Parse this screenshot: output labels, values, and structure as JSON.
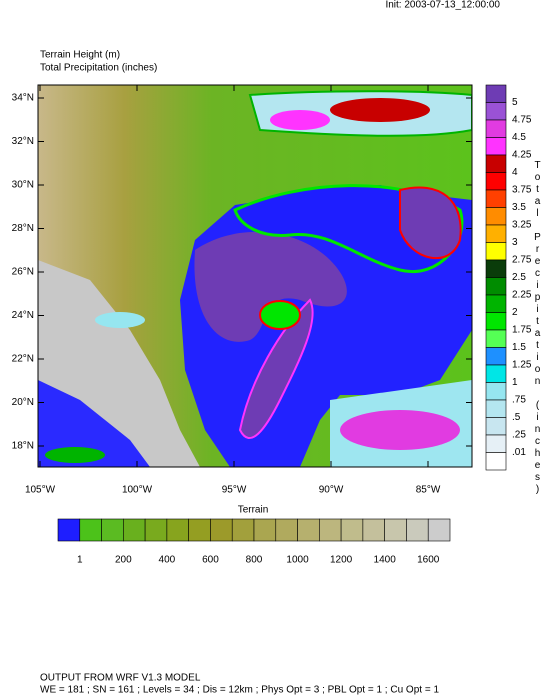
{
  "header": {
    "init": "Init: 2003-07-13_12:00:00",
    "title_1": "Terrain Height   (m)",
    "title_2": "Total Precipitation (inches)"
  },
  "map": {
    "lat_labels": [
      "34°N",
      "32°N",
      "30°N",
      "28°N",
      "26°N",
      "24°N",
      "22°N",
      "20°N",
      "18°N"
    ],
    "lon_labels": [
      "105°W",
      "100°W",
      "95°W",
      "90°W",
      "85°W"
    ]
  },
  "precip_colorbar": {
    "title": "Total Precipitation (inches)",
    "labels": [
      "5",
      "4.75",
      "4.5",
      "4.25",
      "4",
      "3.75",
      "3.5",
      "3.25",
      "3",
      "2.75",
      "2.5",
      "2.25",
      "2",
      "1.75",
      "1.5",
      "1.25",
      "1",
      ".75",
      ".5",
      ".25",
      ".01"
    ],
    "colors": [
      "#6e3cb4",
      "#9a52d6",
      "#e13be1",
      "#ff33ff",
      "#c80000",
      "#ff0000",
      "#ff4000",
      "#ff8c00",
      "#ffb000",
      "#ffff00",
      "#0a3c0a",
      "#008c00",
      "#00b400",
      "#00e600",
      "#55ff55",
      "#1e90ff",
      "#00e6e6",
      "#96e6f0",
      "#b4e6f0",
      "#c8e6f0",
      "#e6f0f6",
      "#ffffff"
    ]
  },
  "terrain_colorbar": {
    "title": "Terrain",
    "labels": [
      "1",
      "200",
      "400",
      "600",
      "800",
      "1000",
      "1200",
      "1400",
      "1600"
    ],
    "colors": [
      "#1e1eff",
      "#4cc21a",
      "#5bbb22",
      "#69b01e",
      "#79aa1e",
      "#87a41e",
      "#949e22",
      "#9c9a2a",
      "#a2a03c",
      "#aaa650",
      "#b0aa5e",
      "#b6b06e",
      "#bcb67e",
      "#c0bc8c",
      "#c4c09c",
      "#c8c6ac",
      "#cacabc",
      "#cccccc"
    ]
  },
  "footer": {
    "line_1": "OUTPUT FROM WRF V1.3 MODEL",
    "line_2": "WE = 181 ; SN = 161 ; Levels = 34 ; Dis = 12km ; Phys Opt = 3 ; PBL Opt = 1 ; Cu Opt = 1"
  }
}
